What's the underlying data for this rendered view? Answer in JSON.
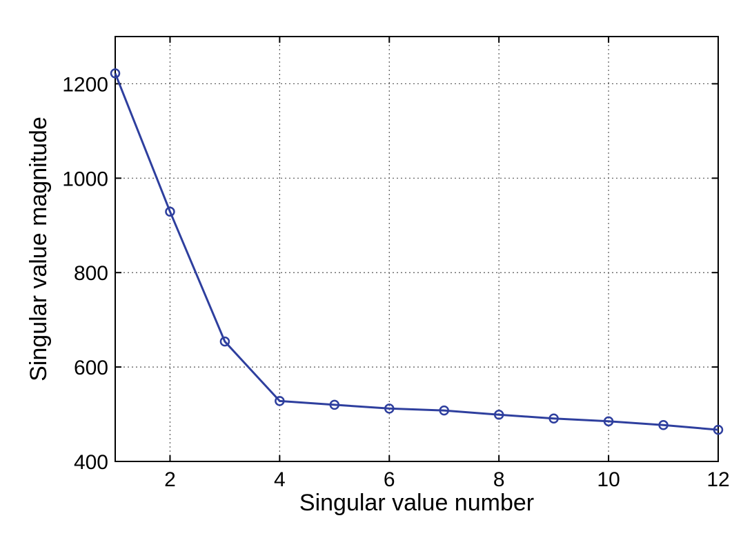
{
  "chart_data": {
    "type": "line",
    "title": "",
    "xlabel": "Singular value number",
    "ylabel": "Singular value magnitude",
    "xlim": [
      1,
      12
    ],
    "ylim": [
      400,
      1300
    ],
    "grid": true,
    "x_ticks": [
      2,
      4,
      6,
      8,
      10,
      12
    ],
    "x_tick_labels": [
      "2",
      "4",
      "6",
      "8",
      "10",
      "12"
    ],
    "y_ticks": [
      400,
      600,
      800,
      1000,
      1200
    ],
    "y_tick_labels": [
      "400",
      "600",
      "800",
      "1000",
      "1200"
    ],
    "series": [
      {
        "color": "#2e3f9e",
        "marker": "circle",
        "x": [
          1,
          2,
          3,
          4,
          5,
          6,
          7,
          8,
          9,
          10,
          11,
          12
        ],
        "y": [
          1222,
          929,
          654,
          528,
          520,
          512,
          508,
          499,
          491,
          485,
          477,
          467
        ]
      }
    ]
  }
}
